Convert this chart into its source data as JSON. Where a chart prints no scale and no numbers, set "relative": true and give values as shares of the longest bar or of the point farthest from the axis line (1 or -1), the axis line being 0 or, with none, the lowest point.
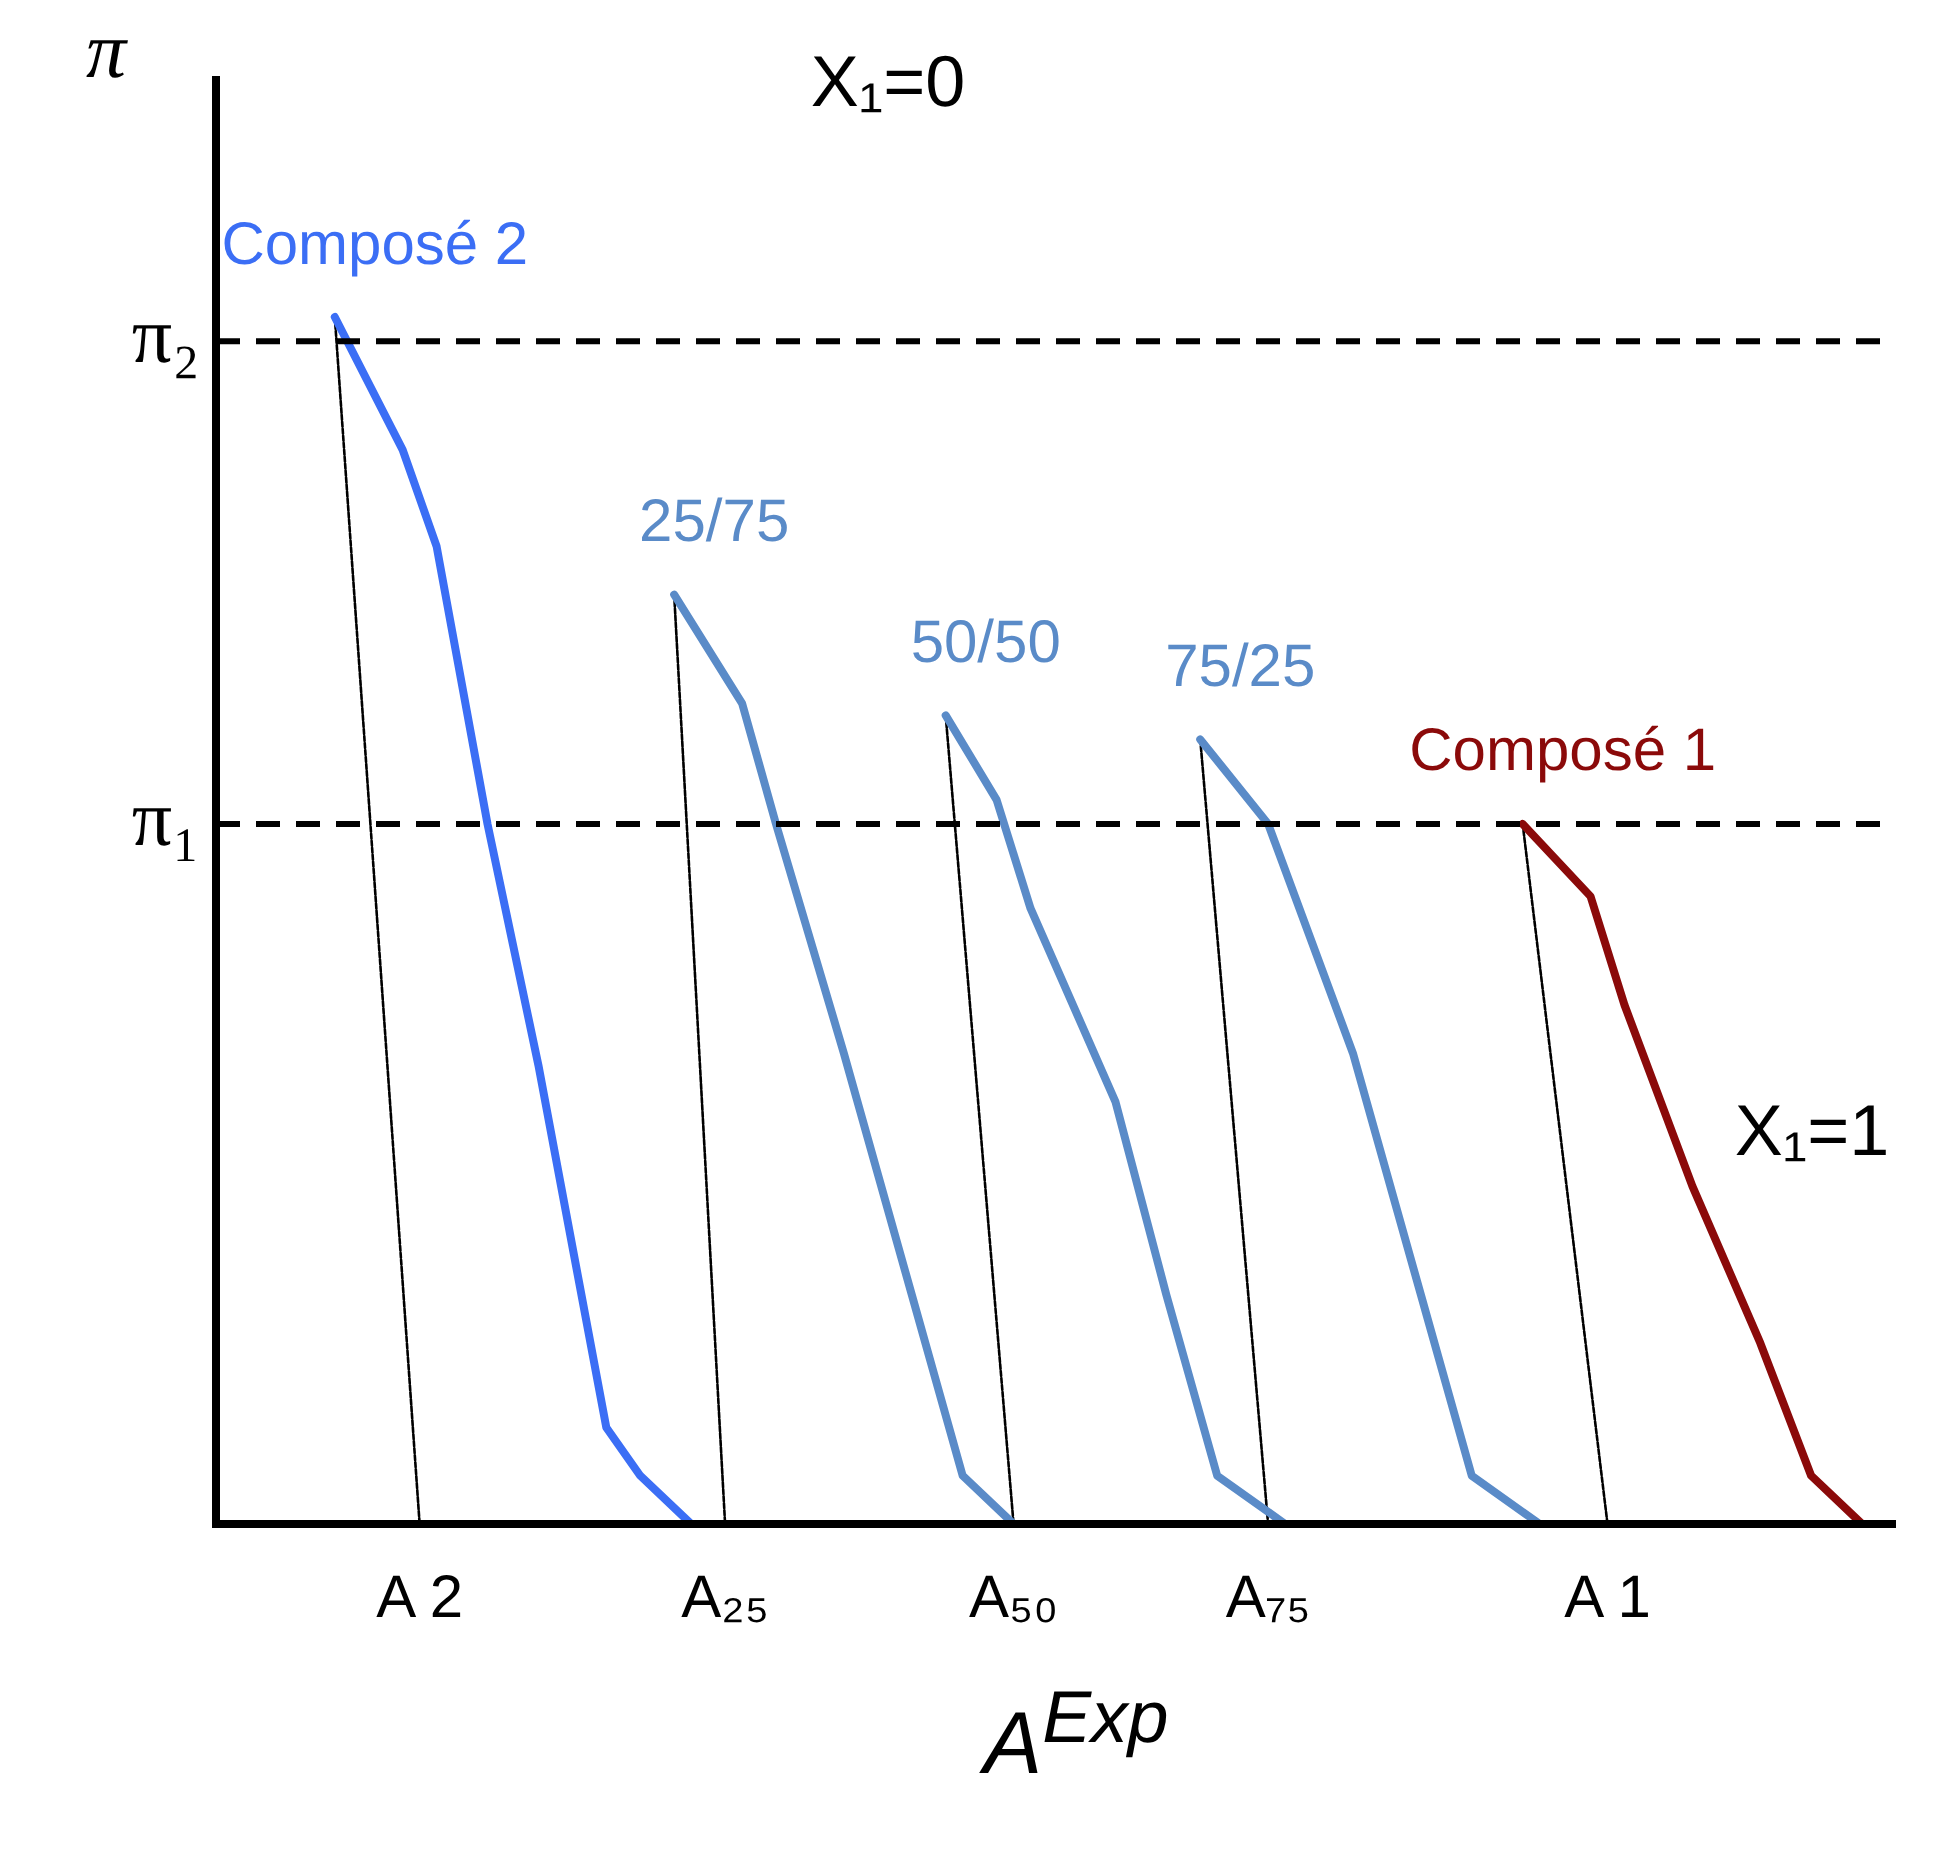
{
  "chart_data": {
    "type": "line",
    "relative": true,
    "ylabel": "π",
    "xlabel": "A$^{Exp}$",
    "categories": [
      null,
      null,
      null,
      null,
      null,
      null,
      null,
      null,
      null,
      null,
      null,
      null,
      "A 2",
      null,
      null,
      null,
      null,
      null,
      null,
      null,
      null,
      null,
      null,
      null,
      null,
      null,
      null,
      null,
      null,
      null,
      "A₂₅",
      null,
      null,
      null,
      null,
      null,
      null,
      null,
      null,
      null,
      null,
      null,
      null,
      null,
      null,
      null,
      null,
      "A₅₀",
      null,
      null,
      null,
      null,
      null,
      null,
      null,
      null,
      null,
      null,
      null,
      null,
      null,
      null,
      "A₇₅",
      null,
      null,
      null,
      null,
      null,
      null,
      null,
      null,
      null,
      null,
      null,
      null,
      null,
      null,
      null,
      null,
      null,
      null,
      null,
      "A 1",
      null,
      null,
      null,
      null,
      null,
      null,
      null,
      null,
      null,
      null,
      null,
      null,
      null,
      null,
      null,
      null,
      null
    ],
    "series": [
      {
        "name": "Composé 2",
        "color": "#3b6ef5",
        "values": [
          null,
          null,
          null,
          null,
          null,
          null,
          null,
          1,
          null,
          null,
          null,
          0.89,
          null,
          0.81,
          null,
          null,
          0.58,
          null,
          null,
          0.38,
          null,
          null,
          null,
          0.08,
          null,
          0.04,
          null,
          null,
          0,
          null,
          null,
          null,
          null,
          null,
          null,
          null,
          null,
          null,
          null,
          null,
          null,
          null,
          null,
          null,
          null,
          null,
          null,
          null,
          null,
          null,
          null,
          null,
          null,
          null,
          null,
          null,
          null,
          null,
          null,
          null,
          null,
          null,
          null,
          null,
          null,
          null,
          null,
          null,
          null,
          null,
          null,
          null,
          null,
          null,
          null,
          null,
          null,
          null,
          null,
          null,
          null,
          null,
          null,
          null,
          null,
          null,
          null,
          null,
          null,
          null,
          null,
          null,
          null,
          null,
          null,
          null,
          null,
          null,
          null,
          null
        ]
      },
      {
        "name": "25/75",
        "color": "#5a8bc8",
        "values": [
          null,
          null,
          null,
          null,
          null,
          null,
          null,
          null,
          null,
          null,
          null,
          null,
          null,
          null,
          null,
          null,
          null,
          null,
          null,
          null,
          null,
          null,
          null,
          null,
          null,
          null,
          null,
          0.77,
          null,
          null,
          null,
          0.68,
          null,
          0.58,
          null,
          null,
          null,
          0.39,
          null,
          null,
          null,
          0.19,
          null,
          null,
          0.04,
          null,
          null,
          0,
          null,
          null,
          null,
          null,
          null,
          null,
          null,
          null,
          null,
          null,
          null,
          null,
          null,
          null,
          null,
          null,
          null,
          null,
          null,
          null,
          null,
          null,
          null,
          null,
          null,
          null,
          null,
          null,
          null,
          null,
          null,
          null,
          null,
          null,
          null,
          null,
          null,
          null,
          null,
          null,
          null,
          null,
          null,
          null,
          null,
          null,
          null,
          null,
          null,
          null,
          null,
          null
        ]
      },
      {
        "name": "50/50",
        "color": "#5a8bc8",
        "values": [
          null,
          null,
          null,
          null,
          null,
          null,
          null,
          null,
          null,
          null,
          null,
          null,
          null,
          null,
          null,
          null,
          null,
          null,
          null,
          null,
          null,
          null,
          null,
          null,
          null,
          null,
          null,
          null,
          null,
          null,
          null,
          null,
          null,
          null,
          null,
          null,
          null,
          null,
          null,
          null,
          null,
          null,
          null,
          0.67,
          null,
          null,
          0.6,
          null,
          0.51,
          null,
          null,
          null,
          null,
          0.35,
          null,
          null,
          0.19,
          null,
          null,
          0.04,
          null,
          null,
          null,
          0,
          null,
          null,
          null,
          null,
          null,
          null,
          null,
          null,
          null,
          null,
          null,
          null,
          null,
          null,
          null,
          null,
          null,
          null,
          null,
          null,
          null,
          null,
          null,
          null,
          null,
          null,
          null,
          null,
          null,
          null,
          null,
          null,
          null,
          null,
          null,
          null
        ]
      },
      {
        "name": "75/25",
        "color": "#5a8bc8",
        "values": [
          null,
          null,
          null,
          null,
          null,
          null,
          null,
          null,
          null,
          null,
          null,
          null,
          null,
          null,
          null,
          null,
          null,
          null,
          null,
          null,
          null,
          null,
          null,
          null,
          null,
          null,
          null,
          null,
          null,
          null,
          null,
          null,
          null,
          null,
          null,
          null,
          null,
          null,
          null,
          null,
          null,
          null,
          null,
          null,
          null,
          null,
          null,
          null,
          null,
          null,
          null,
          null,
          null,
          null,
          null,
          null,
          null,
          null,
          0.65,
          null,
          null,
          null,
          0.58,
          null,
          null,
          null,
          null,
          0.39,
          null,
          null,
          null,
          0.19,
          null,
          null,
          0.04,
          null,
          null,
          null,
          0,
          null,
          null,
          null,
          null,
          null,
          null,
          null,
          null,
          null,
          null,
          null,
          null,
          null,
          null,
          null,
          null,
          null,
          null,
          null,
          null,
          null
        ]
      },
      {
        "name": "Composé 1",
        "color": "#8b0a0a",
        "values": [
          null,
          null,
          null,
          null,
          null,
          null,
          null,
          null,
          null,
          null,
          null,
          null,
          null,
          null,
          null,
          null,
          null,
          null,
          null,
          null,
          null,
          null,
          null,
          null,
          null,
          null,
          null,
          null,
          null,
          null,
          null,
          null,
          null,
          null,
          null,
          null,
          null,
          null,
          null,
          null,
          null,
          null,
          null,
          null,
          null,
          null,
          null,
          null,
          null,
          null,
          null,
          null,
          null,
          null,
          null,
          null,
          null,
          null,
          null,
          null,
          null,
          null,
          null,
          null,
          null,
          null,
          null,
          null,
          null,
          null,
          null,
          null,
          null,
          null,
          null,
          null,
          null,
          0.58,
          null,
          null,
          null,
          0.52,
          null,
          0.43,
          null,
          null,
          null,
          0.28,
          null,
          null,
          null,
          0.15,
          null,
          null,
          0.04,
          null,
          null,
          0,
          null,
          null
        ]
      },
      {
        "color": "#000000",
        "line_style": "dotted",
        "values": [
          null,
          null,
          null,
          null,
          null,
          null,
          null,
          1,
          null,
          null,
          null,
          null,
          0,
          null,
          null,
          null,
          null,
          null,
          null,
          null,
          null,
          null,
          null,
          null,
          null,
          null,
          null,
          null,
          null,
          null,
          null,
          null,
          null,
          null,
          null,
          null,
          null,
          null,
          null,
          null,
          null,
          null,
          null,
          null,
          null,
          null,
          null,
          null,
          null,
          null,
          null,
          null,
          null,
          null,
          null,
          null,
          null,
          null,
          null,
          null,
          null,
          null,
          null,
          null,
          null,
          null,
          null,
          null,
          null,
          null,
          null,
          null,
          null,
          null,
          null,
          null,
          null,
          null,
          null,
          null,
          null,
          null,
          null,
          null,
          null,
          null,
          null,
          null,
          null,
          null,
          null,
          null,
          null,
          null,
          null,
          null,
          null,
          null,
          null,
          null
        ]
      },
      {
        "color": "#000000",
        "line_style": "dotted",
        "values": [
          null,
          null,
          null,
          null,
          null,
          null,
          null,
          null,
          null,
          null,
          null,
          null,
          null,
          null,
          null,
          null,
          null,
          null,
          null,
          null,
          null,
          null,
          null,
          null,
          null,
          null,
          null,
          0.77,
          null,
          null,
          0,
          null,
          null,
          null,
          null,
          null,
          null,
          null,
          null,
          null,
          null,
          null,
          null,
          null,
          null,
          null,
          null,
          null,
          null,
          null,
          null,
          null,
          null,
          null,
          null,
          null,
          null,
          null,
          null,
          null,
          null,
          null,
          null,
          null,
          null,
          null,
          null,
          null,
          null,
          null,
          null,
          null,
          null,
          null,
          null,
          null,
          null,
          null,
          null,
          null,
          null,
          null,
          null,
          null,
          null,
          null,
          null,
          null,
          null,
          null,
          null,
          null,
          null,
          null,
          null,
          null,
          null,
          null,
          null,
          null
        ]
      },
      {
        "color": "#000000",
        "line_style": "dotted",
        "values": [
          null,
          null,
          null,
          null,
          null,
          null,
          null,
          null,
          null,
          null,
          null,
          null,
          null,
          null,
          null,
          null,
          null,
          null,
          null,
          null,
          null,
          null,
          null,
          null,
          null,
          null,
          null,
          null,
          null,
          null,
          null,
          null,
          null,
          null,
          null,
          null,
          null,
          null,
          null,
          null,
          null,
          null,
          null,
          0.67,
          null,
          null,
          null,
          0,
          null,
          null,
          null,
          null,
          null,
          null,
          null,
          null,
          null,
          null,
          null,
          null,
          null,
          null,
          null,
          null,
          null,
          null,
          null,
          null,
          null,
          null,
          null,
          null,
          null,
          null,
          null,
          null,
          null,
          null,
          null,
          null,
          null,
          null,
          null,
          null,
          null,
          null,
          null,
          null,
          null,
          null,
          null,
          null,
          null,
          null,
          null,
          null,
          null,
          null,
          null,
          null
        ]
      },
      {
        "color": "#000000",
        "line_style": "dotted",
        "values": [
          null,
          null,
          null,
          null,
          null,
          null,
          null,
          null,
          null,
          null,
          null,
          null,
          null,
          null,
          null,
          null,
          null,
          null,
          null,
          null,
          null,
          null,
          null,
          null,
          null,
          null,
          null,
          null,
          null,
          null,
          null,
          null,
          null,
          null,
          null,
          null,
          null,
          null,
          null,
          null,
          null,
          null,
          null,
          null,
          null,
          null,
          null,
          null,
          null,
          null,
          null,
          null,
          null,
          null,
          null,
          null,
          null,
          null,
          0.65,
          null,
          null,
          null,
          0,
          null,
          null,
          null,
          null,
          null,
          null,
          null,
          null,
          null,
          null,
          null,
          null,
          null,
          null,
          null,
          null,
          null,
          null,
          null,
          null,
          null,
          null,
          null,
          null,
          null,
          null,
          null,
          null,
          null,
          null,
          null,
          null,
          null,
          null,
          null,
          null,
          null
        ]
      },
      {
        "color": "#000000",
        "line_style": "dotted",
        "values": [
          null,
          null,
          null,
          null,
          null,
          null,
          null,
          null,
          null,
          null,
          null,
          null,
          null,
          null,
          null,
          null,
          null,
          null,
          null,
          null,
          null,
          null,
          null,
          null,
          null,
          null,
          null,
          null,
          null,
          null,
          null,
          null,
          null,
          null,
          null,
          null,
          null,
          null,
          null,
          null,
          null,
          null,
          null,
          null,
          null,
          null,
          null,
          null,
          null,
          null,
          null,
          null,
          null,
          null,
          null,
          null,
          null,
          null,
          null,
          null,
          null,
          null,
          null,
          null,
          null,
          null,
          null,
          null,
          null,
          null,
          null,
          null,
          null,
          null,
          null,
          null,
          null,
          0.58,
          null,
          null,
          null,
          null,
          0,
          null,
          null,
          null,
          null,
          null,
          null,
          null,
          null,
          null,
          null,
          null,
          null,
          null,
          null,
          null,
          null,
          null
        ]
      }
    ],
    "ref_lines": [
      {
        "axis": "y",
        "value": 0.98,
        "label": "π₂",
        "line_style": "dashed",
        "color": "#000000"
      },
      {
        "axis": "y",
        "value": 0.58,
        "label": "π₁",
        "line_style": "dashed",
        "color": "#000000"
      }
    ],
    "annotations": [
      "X₁=0",
      "X₁=1"
    ],
    "marker": "none",
    "legend": false
  }
}
